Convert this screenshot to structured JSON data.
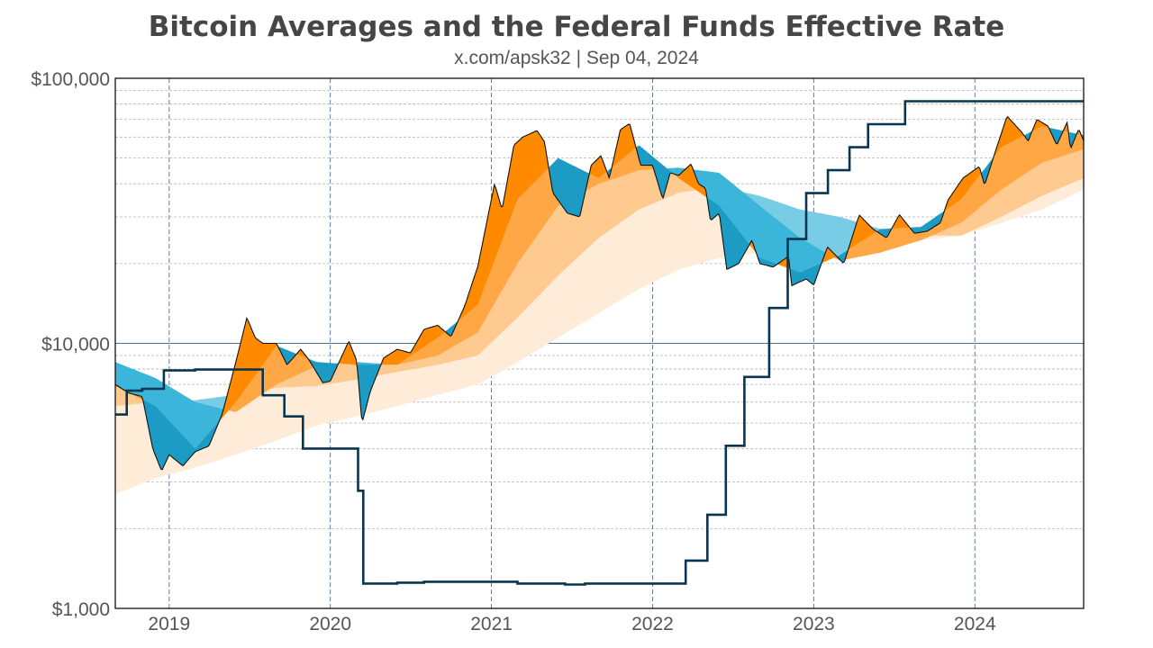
{
  "chart_data": {
    "type": "area",
    "title": "Bitcoin Averages and the Federal Funds Effective Rate",
    "subtitle": "x.com/apsk32 | Sep 04, 2024",
    "y_scale": "log",
    "ylim": [
      1000,
      100000
    ],
    "y_ticks": [
      "$1,000",
      "$10,000",
      "$100,000"
    ],
    "y_tick_values": [
      1000,
      10000,
      100000
    ],
    "x_ticks": [
      "2019",
      "2020",
      "2021",
      "2022",
      "2023",
      "2024"
    ],
    "xlim": [
      "2018-09-01",
      "2024-09-04"
    ],
    "grid": true,
    "colors": {
      "above_average": [
        "#ff8a00",
        "#ffa745",
        "#ffca8f",
        "#ffecd8"
      ],
      "below_average": [
        "#1c9cc4",
        "#3bb5da",
        "#78cce6",
        "#a9def0"
      ],
      "price_line": "#111111",
      "fed_rate_line": "#0a3550",
      "ten_thousand_line": "#4f6f8f"
    },
    "price": {
      "dates": [
        "2018-09-01",
        "2018-10-01",
        "2018-11-01",
        "2018-11-25",
        "2018-12-15",
        "2019-01-01",
        "2019-02-01",
        "2019-03-01",
        "2019-04-01",
        "2019-05-01",
        "2019-06-01",
        "2019-06-26",
        "2019-07-15",
        "2019-08-01",
        "2019-09-01",
        "2019-09-25",
        "2019-10-26",
        "2019-11-15",
        "2019-12-15",
        "2020-01-01",
        "2020-02-12",
        "2020-03-01",
        "2020-03-13",
        "2020-04-01",
        "2020-05-01",
        "2020-06-01",
        "2020-07-01",
        "2020-08-01",
        "2020-09-01",
        "2020-10-01",
        "2020-11-01",
        "2020-12-01",
        "2021-01-08",
        "2021-01-25",
        "2021-02-21",
        "2021-03-13",
        "2021-04-14",
        "2021-05-01",
        "2021-05-20",
        "2021-06-22",
        "2021-07-20",
        "2021-08-15",
        "2021-09-06",
        "2021-09-25",
        "2021-10-20",
        "2021-11-10",
        "2021-12-05",
        "2022-01-01",
        "2022-01-24",
        "2022-02-10",
        "2022-03-01",
        "2022-03-29",
        "2022-04-15",
        "2022-05-01",
        "2022-05-12",
        "2022-06-01",
        "2022-06-18",
        "2022-07-15",
        "2022-08-14",
        "2022-09-01",
        "2022-10-01",
        "2022-11-05",
        "2022-11-12",
        "2022-12-15",
        "2023-01-01",
        "2023-02-01",
        "2023-03-10",
        "2023-04-14",
        "2023-05-15",
        "2023-06-15",
        "2023-07-14",
        "2023-08-17",
        "2023-09-15",
        "2023-10-15",
        "2023-11-01",
        "2023-12-05",
        "2024-01-11",
        "2024-01-23",
        "2024-02-15",
        "2024-03-14",
        "2024-04-15",
        "2024-05-01",
        "2024-05-21",
        "2024-06-15",
        "2024-07-05",
        "2024-07-29",
        "2024-08-05",
        "2024-08-24",
        "2024-09-04"
      ],
      "values": [
        7000,
        6500,
        6300,
        4000,
        3300,
        3800,
        3450,
        3900,
        4100,
        5400,
        8500,
        12500,
        10500,
        10000,
        10000,
        8300,
        9500,
        8600,
        7100,
        7200,
        10200,
        8600,
        5000,
        6600,
        8800,
        9500,
        9200,
        11300,
        11700,
        10600,
        13800,
        19500,
        40000,
        32000,
        56000,
        60000,
        63500,
        57700,
        37000,
        31000,
        30000,
        47000,
        51000,
        42000,
        64000,
        67500,
        47000,
        47000,
        35000,
        44000,
        43000,
        47500,
        40000,
        38500,
        29000,
        31000,
        19000,
        20000,
        24500,
        20000,
        19400,
        21300,
        16500,
        17500,
        16600,
        23100,
        20000,
        30500,
        27000,
        25000,
        30600,
        26000,
        26500,
        28500,
        34700,
        42000,
        46500,
        39500,
        52000,
        72000,
        63000,
        58000,
        70000,
        66000,
        56000,
        68500,
        54000,
        64500,
        58000
      ]
    },
    "averages": {
      "dates": [
        "2018-09-01",
        "2018-12-01",
        "2019-03-01",
        "2019-06-01",
        "2019-09-01",
        "2019-12-01",
        "2020-03-01",
        "2020-06-01",
        "2020-09-01",
        "2020-12-01",
        "2021-03-01",
        "2021-06-01",
        "2021-09-01",
        "2021-12-01",
        "2022-03-01",
        "2022-06-01",
        "2022-09-01",
        "2022-12-01",
        "2023-03-01",
        "2023-06-01",
        "2023-09-01",
        "2023-12-01",
        "2024-03-01",
        "2024-06-01",
        "2024-09-04"
      ],
      "series": [
        {
          "values": [
            6900,
            5800,
            4000,
            6000,
            9800,
            8500,
            8300,
            8300,
            10500,
            14000,
            35000,
            50000,
            42000,
            56000,
            42000,
            33000,
            21000,
            18500,
            21500,
            27000,
            27500,
            35000,
            55000,
            66000,
            61000
          ]
        },
        {
          "values": [
            8500,
            7400,
            6000,
            5500,
            7000,
            8200,
            8500,
            8300,
            9000,
            11000,
            20000,
            33000,
            40000,
            45000,
            46000,
            44000,
            33000,
            25000,
            20500,
            22000,
            24500,
            28500,
            38000,
            48000,
            54000
          ]
        },
        {
          "values": [
            5800,
            6000,
            6100,
            6400,
            6800,
            6900,
            7300,
            7800,
            8300,
            9000,
            12500,
            18000,
            25000,
            32000,
            37000,
            39000,
            36000,
            32000,
            30000,
            27000,
            25500,
            25500,
            30000,
            36000,
            42000
          ]
        },
        {
          "values": [
            2700,
            3100,
            3400,
            3800,
            4300,
            4900,
            5300,
            5800,
            6400,
            7000,
            8500,
            10500,
            13000,
            16000,
            19000,
            21000,
            22000,
            22000,
            22500,
            23500,
            24500,
            25500,
            28500,
            32000,
            38000
          ]
        }
      ]
    },
    "fed_funds_rate": {
      "unit": "%",
      "axis_labels_shown": false,
      "dates": [
        "2018-09-01",
        "2018-09-27",
        "2018-11-01",
        "2018-12-20",
        "2019-03-01",
        "2019-08-01",
        "2019-09-19",
        "2019-10-31",
        "2020-03-04",
        "2020-03-16",
        "2020-06-01",
        "2020-08-01",
        "2021-03-01",
        "2021-06-17",
        "2021-08-01",
        "2022-03-17",
        "2022-05-05",
        "2022-06-16",
        "2022-07-28",
        "2022-09-22",
        "2022-11-03",
        "2022-12-15",
        "2023-02-02",
        "2023-03-23",
        "2023-05-04",
        "2023-07-27",
        "2024-09-04"
      ],
      "values": [
        1.92,
        2.18,
        2.2,
        2.4,
        2.41,
        2.13,
        1.9,
        1.55,
        1.09,
        0.08,
        0.09,
        0.1,
        0.08,
        0.07,
        0.08,
        0.33,
        0.83,
        1.58,
        2.33,
        3.08,
        3.83,
        4.33,
        4.58,
        4.83,
        5.08,
        5.33,
        5.33
      ]
    }
  }
}
